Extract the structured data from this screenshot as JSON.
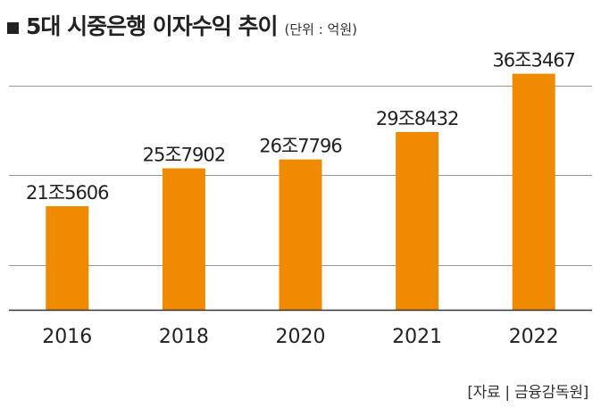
{
  "header": {
    "marker_icon": "square-bullet-icon",
    "title": "5대 시중은행 이자수익 추이",
    "unit": "(단위 : 억원)"
  },
  "chart_data": {
    "type": "bar",
    "categories": [
      "2016",
      "2018",
      "2020",
      "2021",
      "2022"
    ],
    "values": [
      215606,
      257902,
      267796,
      298432,
      363467
    ],
    "data_labels": [
      "21조5606",
      "25조7902",
      "26조7796",
      "29조8432",
      "36조3467"
    ],
    "ylim": [
      100000,
      380000
    ],
    "gridlines": [
      150000,
      250000,
      350000
    ],
    "grid": true,
    "bar_color": "#F08A00",
    "grid_color": "#9a9a9a",
    "baseline_color": "#333333"
  },
  "source": "[자료 | 금융감독원]"
}
